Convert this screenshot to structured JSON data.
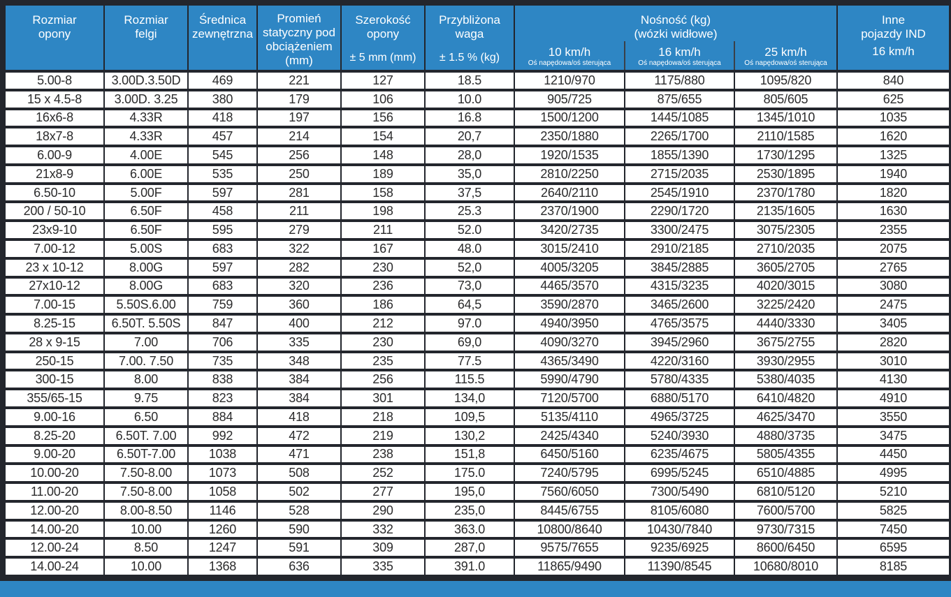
{
  "colors": {
    "header_blue": "#2e86c4",
    "border_dark": "#23262d",
    "cell_bg": "#ffffff",
    "cell_text": "#2b2b2c"
  },
  "table": {
    "columns": [
      {
        "label": "Rozmiar\nopony"
      },
      {
        "label": "Rozmiar\nfelgi"
      },
      {
        "label": "Średnica\nzewnętrzna"
      },
      {
        "label": "Promień\nstatyczny pod\nobciążeniem\n(mm)"
      },
      {
        "label": "Szerokość\nopony",
        "unit": "± 5 mm (mm)"
      },
      {
        "label": "Przybliżona\nwaga",
        "unit": "± 1.5 % (kg)"
      }
    ],
    "load_group": {
      "title": "Nośność (kg)\n(wózki widłowe)",
      "speeds": [
        {
          "label": "10 km/h",
          "sub": "Oś napędowa/oś sterująca"
        },
        {
          "label": "16 km/h",
          "sub": "Oś napędowa/oś sterująca"
        },
        {
          "label": "25 km/h",
          "sub": "Oś napędowa/oś sterująca"
        }
      ]
    },
    "other_col": {
      "label": "Inne\npojazdy IND",
      "sub": "16 km/h"
    },
    "rows": [
      [
        "5.00-8",
        "3.00D.3.50D",
        "469",
        "221",
        "127",
        "18.5",
        "1210/970",
        "1175/880",
        "1095/820",
        "840"
      ],
      [
        "15 x 4.5-8",
        "3.00D. 3.25",
        "380",
        "179",
        "106",
        "10.0",
        "905/725",
        "875/655",
        "805/605",
        "625"
      ],
      [
        "16x6-8",
        "4.33R",
        "418",
        "197",
        "156",
        "16.8",
        "1500/1200",
        "1445/1085",
        "1345/1010",
        "1035"
      ],
      [
        "18x7-8",
        "4.33R",
        "457",
        "214",
        "154",
        "20,7",
        "2350/1880",
        "2265/1700",
        "2110/1585",
        "1620"
      ],
      [
        "6.00-9",
        "4.00E",
        "545",
        "256",
        "148",
        "28,0",
        "1920/1535",
        "1855/1390",
        "1730/1295",
        "1325"
      ],
      [
        "21x8-9",
        "6.00E",
        "535",
        "250",
        "189",
        "35,0",
        "2810/2250",
        "2715/2035",
        "2530/1895",
        "1940"
      ],
      [
        "6.50-10",
        "5.00F",
        "597",
        "281",
        "158",
        "37,5",
        "2640/2110",
        "2545/1910",
        "2370/1780",
        "1820"
      ],
      [
        "200 / 50-10",
        "6.50F",
        "458",
        "211",
        "198",
        "25.3",
        "2370/1900",
        "2290/1720",
        "2135/1605",
        "1630"
      ],
      [
        "23x9-10",
        "6.50F",
        "595",
        "279",
        "211",
        "52.0",
        "3420/2735",
        "3300/2475",
        "3075/2305",
        "2355"
      ],
      [
        "7.00-12",
        "5.00S",
        "683",
        "322",
        "167",
        "48.0",
        "3015/2410",
        "2910/2185",
        "2710/2035",
        "2075"
      ],
      [
        "23 x 10-12",
        "8.00G",
        "597",
        "282",
        "230",
        "52,0",
        "4005/3205",
        "3845/2885",
        "3605/2705",
        "2765"
      ],
      [
        "27x10-12",
        "8.00G",
        "683",
        "320",
        "236",
        "73,0",
        "4465/3570",
        "4315/3235",
        "4020/3015",
        "3080"
      ],
      [
        "7.00-15",
        "5.50S.6.00",
        "759",
        "360",
        "186",
        "64,5",
        "3590/2870",
        "3465/2600",
        "3225/2420",
        "2475"
      ],
      [
        "8.25-15",
        "6.50T. 5.50S",
        "847",
        "400",
        "212",
        "97.0",
        "4940/3950",
        "4765/3575",
        "4440/3330",
        "3405"
      ],
      [
        "28 x 9-15",
        "7.00",
        "706",
        "335",
        "230",
        "69,0",
        "4090/3270",
        "3945/2960",
        "3675/2755",
        "2820"
      ],
      [
        "250-15",
        "7.00. 7.50",
        "735",
        "348",
        "235",
        "77.5",
        "4365/3490",
        "4220/3160",
        "3930/2955",
        "3010"
      ],
      [
        "300-15",
        "8.00",
        "838",
        "384",
        "256",
        "115.5",
        "5990/4790",
        "5780/4335",
        "5380/4035",
        "4130"
      ],
      [
        "355/65-15",
        "9.75",
        "823",
        "384",
        "301",
        "134,0",
        "7120/5700",
        "6880/5170",
        "6410/4820",
        "4910"
      ],
      [
        "9.00-16",
        "6.50",
        "884",
        "418",
        "218",
        "109,5",
        "5135/4110",
        "4965/3725",
        "4625/3470",
        "3550"
      ],
      [
        "8.25-20",
        "6.50T. 7.00",
        "992",
        "472",
        "219",
        "130,2",
        "2425/4340",
        "5240/3930",
        "4880/3735",
        "3475"
      ],
      [
        "9.00-20",
        "6.50T-7.00",
        "1038",
        "471",
        "238",
        "151,8",
        "6450/5160",
        "6235/4675",
        "5805/4355",
        "4450"
      ],
      [
        "10.00-20",
        "7.50-8.00",
        "1073",
        "508",
        "252",
        "175.0",
        "7240/5795",
        "6995/5245",
        "6510/4885",
        "4995"
      ],
      [
        "11.00-20",
        "7.50-8.00",
        "1058",
        "502",
        "277",
        "195,0",
        "7560/6050",
        "7300/5490",
        "6810/5120",
        "5210"
      ],
      [
        "12.00-20",
        "8.00-8.50",
        "1146",
        "528",
        "290",
        "235,0",
        "8445/6755",
        "8105/6080",
        "7600/5700",
        "5825"
      ],
      [
        "14.00-20",
        "10.00",
        "1260",
        "590",
        "332",
        "363.0",
        "10800/8640",
        "10430/7840",
        "9730/7315",
        "7450"
      ],
      [
        "12.00-24",
        "8.50",
        "1247",
        "591",
        "309",
        "287,0",
        "9575/7655",
        "9235/6925",
        "8600/6450",
        "6595"
      ],
      [
        "14.00-24",
        "10.00",
        "1368",
        "636",
        "335",
        "391.0",
        "11865/9490",
        "11390/8545",
        "10680/8010",
        "8185"
      ]
    ]
  }
}
